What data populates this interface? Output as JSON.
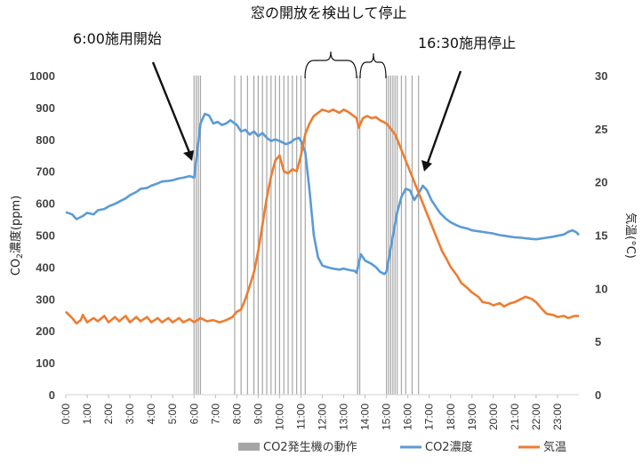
{
  "chart_data": {
    "type": "line",
    "x_unit": "time of day",
    "xtick_labels": [
      "0:00",
      "1:00",
      "2:00",
      "3:00",
      "4:00",
      "5:00",
      "6:00",
      "7:00",
      "8:00",
      "9:00",
      "10:00",
      "11:00",
      "12:00",
      "13:00",
      "14:00",
      "15:00",
      "16:00",
      "17:00",
      "18:00",
      "19:00",
      "20:00",
      "21:00",
      "22:00",
      "23:00"
    ],
    "xlim": [
      0,
      24
    ],
    "y_left": {
      "label_main": "CO",
      "label_sub": "2",
      "label_rest": "濃度(ppm)",
      "ylim": [
        0,
        1000
      ],
      "ticks": [
        "0",
        "100",
        "200",
        "300",
        "400",
        "500",
        "600",
        "700",
        "800",
        "900",
        "1000"
      ]
    },
    "y_right": {
      "label": "気温(°C)",
      "ylim": [
        0,
        30
      ],
      "ticks": [
        "0",
        "5",
        "10",
        "15",
        "20",
        "25",
        "30"
      ]
    },
    "grid": false,
    "legend": {
      "position": "bottom",
      "items": [
        {
          "name": "CO2発生機の動作",
          "color": "#a6a6a6"
        },
        {
          "name": "CO2濃度",
          "color": "#5b9bd5"
        },
        {
          "name": "気温",
          "color": "#ed7d31"
        }
      ]
    },
    "series": [
      {
        "name": "CO2濃度",
        "color": "#5b9bd5",
        "axis": "left",
        "points": [
          [
            0,
            572
          ],
          [
            0.3,
            565
          ],
          [
            0.5,
            550
          ],
          [
            0.8,
            560
          ],
          [
            1.0,
            570
          ],
          [
            1.3,
            565
          ],
          [
            1.5,
            578
          ],
          [
            1.8,
            582
          ],
          [
            2.0,
            590
          ],
          [
            2.3,
            598
          ],
          [
            2.5,
            605
          ],
          [
            2.8,
            615
          ],
          [
            3.0,
            625
          ],
          [
            3.3,
            635
          ],
          [
            3.5,
            645
          ],
          [
            3.8,
            648
          ],
          [
            4.0,
            655
          ],
          [
            4.3,
            662
          ],
          [
            4.5,
            668
          ],
          [
            4.8,
            670
          ],
          [
            5.0,
            672
          ],
          [
            5.3,
            678
          ],
          [
            5.5,
            680
          ],
          [
            5.8,
            685
          ],
          [
            6.0,
            680
          ],
          [
            6.1,
            735
          ],
          [
            6.3,
            850
          ],
          [
            6.5,
            880
          ],
          [
            6.7,
            875
          ],
          [
            6.9,
            850
          ],
          [
            7.1,
            855
          ],
          [
            7.3,
            845
          ],
          [
            7.5,
            850
          ],
          [
            7.7,
            860
          ],
          [
            8.0,
            845
          ],
          [
            8.2,
            825
          ],
          [
            8.4,
            830
          ],
          [
            8.6,
            815
          ],
          [
            8.8,
            825
          ],
          [
            9.0,
            810
          ],
          [
            9.2,
            820
          ],
          [
            9.4,
            805
          ],
          [
            9.6,
            795
          ],
          [
            9.8,
            800
          ],
          [
            10.0,
            795
          ],
          [
            10.3,
            785
          ],
          [
            10.5,
            790
          ],
          [
            10.7,
            800
          ],
          [
            10.9,
            805
          ],
          [
            11.0,
            795
          ],
          [
            11.2,
            760
          ],
          [
            11.4,
            640
          ],
          [
            11.6,
            500
          ],
          [
            11.8,
            430
          ],
          [
            12.0,
            405
          ],
          [
            12.2,
            400
          ],
          [
            12.5,
            395
          ],
          [
            12.8,
            392
          ],
          [
            13.0,
            395
          ],
          [
            13.3,
            390
          ],
          [
            13.5,
            388
          ],
          [
            13.6,
            382
          ],
          [
            13.8,
            440
          ],
          [
            14.0,
            420
          ],
          [
            14.3,
            410
          ],
          [
            14.5,
            400
          ],
          [
            14.7,
            385
          ],
          [
            14.9,
            378
          ],
          [
            15.0,
            385
          ],
          [
            15.2,
            460
          ],
          [
            15.5,
            570
          ],
          [
            15.7,
            620
          ],
          [
            15.9,
            645
          ],
          [
            16.1,
            640
          ],
          [
            16.3,
            610
          ],
          [
            16.5,
            630
          ],
          [
            16.7,
            655
          ],
          [
            16.9,
            640
          ],
          [
            17.1,
            610
          ],
          [
            17.3,
            590
          ],
          [
            17.5,
            570
          ],
          [
            17.8,
            550
          ],
          [
            18.0,
            540
          ],
          [
            18.3,
            530
          ],
          [
            18.5,
            525
          ],
          [
            18.8,
            520
          ],
          [
            19.0,
            515
          ],
          [
            19.3,
            512
          ],
          [
            19.5,
            510
          ],
          [
            19.8,
            507
          ],
          [
            20.0,
            505
          ],
          [
            20.3,
            500
          ],
          [
            20.5,
            498
          ],
          [
            20.8,
            495
          ],
          [
            21.0,
            493
          ],
          [
            21.3,
            492
          ],
          [
            21.5,
            490
          ],
          [
            21.8,
            488
          ],
          [
            22.0,
            487
          ],
          [
            22.3,
            490
          ],
          [
            22.5,
            492
          ],
          [
            22.8,
            495
          ],
          [
            23.0,
            498
          ],
          [
            23.3,
            502
          ],
          [
            23.5,
            510
          ],
          [
            23.7,
            515
          ],
          [
            23.9,
            508
          ],
          [
            24.0,
            500
          ]
        ]
      },
      {
        "name": "気温",
        "color": "#ed7d31",
        "axis": "right",
        "points": [
          [
            0,
            7.8
          ],
          [
            0.3,
            7.2
          ],
          [
            0.5,
            6.7
          ],
          [
            0.7,
            7.0
          ],
          [
            0.8,
            7.5
          ],
          [
            1.0,
            6.8
          ],
          [
            1.3,
            7.2
          ],
          [
            1.5,
            6.9
          ],
          [
            1.8,
            7.4
          ],
          [
            2.0,
            6.8
          ],
          [
            2.3,
            7.3
          ],
          [
            2.5,
            6.9
          ],
          [
            2.8,
            7.4
          ],
          [
            3.0,
            6.8
          ],
          [
            3.3,
            7.3
          ],
          [
            3.5,
            6.9
          ],
          [
            3.8,
            7.3
          ],
          [
            4.0,
            6.8
          ],
          [
            4.3,
            7.2
          ],
          [
            4.5,
            6.8
          ],
          [
            4.8,
            7.2
          ],
          [
            5.0,
            6.8
          ],
          [
            5.3,
            7.2
          ],
          [
            5.5,
            6.8
          ],
          [
            5.8,
            7.1
          ],
          [
            6.0,
            6.8
          ],
          [
            6.3,
            7.2
          ],
          [
            6.6,
            6.9
          ],
          [
            6.9,
            7.0
          ],
          [
            7.2,
            6.8
          ],
          [
            7.5,
            7.0
          ],
          [
            7.8,
            7.3
          ],
          [
            8.0,
            7.8
          ],
          [
            8.2,
            8.0
          ],
          [
            8.4,
            9.0
          ],
          [
            8.6,
            10.2
          ],
          [
            8.8,
            11.5
          ],
          [
            9.0,
            13.5
          ],
          [
            9.2,
            16.0
          ],
          [
            9.4,
            18.5
          ],
          [
            9.6,
            20.5
          ],
          [
            9.8,
            22.0
          ],
          [
            10.0,
            22.5
          ],
          [
            10.2,
            21.0
          ],
          [
            10.4,
            20.8
          ],
          [
            10.6,
            21.2
          ],
          [
            10.8,
            21.0
          ],
          [
            11.0,
            22.5
          ],
          [
            11.2,
            24.5
          ],
          [
            11.4,
            25.5
          ],
          [
            11.6,
            26.2
          ],
          [
            11.8,
            26.5
          ],
          [
            12.0,
            26.8
          ],
          [
            12.3,
            26.6
          ],
          [
            12.5,
            26.8
          ],
          [
            12.8,
            26.5
          ],
          [
            13.0,
            26.8
          ],
          [
            13.2,
            26.6
          ],
          [
            13.4,
            26.3
          ],
          [
            13.6,
            26.0
          ],
          [
            13.7,
            25.1
          ],
          [
            13.9,
            26.0
          ],
          [
            14.1,
            26.2
          ],
          [
            14.3,
            26.0
          ],
          [
            14.5,
            26.1
          ],
          [
            14.7,
            25.8
          ],
          [
            15.0,
            25.5
          ],
          [
            15.2,
            25.0
          ],
          [
            15.4,
            24.5
          ],
          [
            15.6,
            23.5
          ],
          [
            15.8,
            22.5
          ],
          [
            16.0,
            21.5
          ],
          [
            16.2,
            20.5
          ],
          [
            16.4,
            19.5
          ],
          [
            16.6,
            18.5
          ],
          [
            16.8,
            17.5
          ],
          [
            17.0,
            16.5
          ],
          [
            17.2,
            15.5
          ],
          [
            17.4,
            14.5
          ],
          [
            17.6,
            13.5
          ],
          [
            17.8,
            12.8
          ],
          [
            18.0,
            12.0
          ],
          [
            18.3,
            11.2
          ],
          [
            18.5,
            10.5
          ],
          [
            18.8,
            10.0
          ],
          [
            19.0,
            9.6
          ],
          [
            19.3,
            9.2
          ],
          [
            19.5,
            8.7
          ],
          [
            19.8,
            8.6
          ],
          [
            20.0,
            8.4
          ],
          [
            20.3,
            8.6
          ],
          [
            20.5,
            8.3
          ],
          [
            20.8,
            8.6
          ],
          [
            21.0,
            8.7
          ],
          [
            21.3,
            9.0
          ],
          [
            21.5,
            9.2
          ],
          [
            21.8,
            9.0
          ],
          [
            22.0,
            8.7
          ],
          [
            22.3,
            8.0
          ],
          [
            22.5,
            7.6
          ],
          [
            22.8,
            7.5
          ],
          [
            23.0,
            7.3
          ],
          [
            23.3,
            7.4
          ],
          [
            23.5,
            7.2
          ],
          [
            23.8,
            7.4
          ],
          [
            24.0,
            7.4
          ]
        ]
      }
    ],
    "generator_operation_times": [
      6.0,
      6.1,
      6.2,
      6.3,
      7.9,
      8.2,
      8.5,
      8.8,
      9.0,
      9.2,
      9.4,
      9.6,
      9.8,
      10.0,
      10.2,
      10.4,
      10.6,
      10.8,
      11.0,
      11.2,
      13.65,
      13.75,
      15.0,
      15.1,
      15.2,
      15.3,
      15.4,
      15.5,
      15.7,
      15.9,
      16.2,
      16.5
    ],
    "annotations": [
      {
        "id": "start",
        "text": "6:00施用開始"
      },
      {
        "id": "window",
        "text": "窓の開放を検出して停止"
      },
      {
        "id": "stop",
        "text": "16:30施用停止"
      }
    ]
  }
}
